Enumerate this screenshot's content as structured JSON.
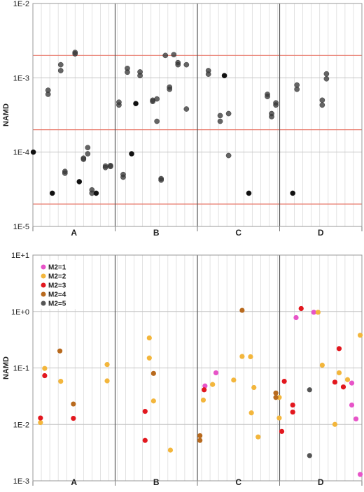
{
  "chart_data": [
    {
      "type": "scatter",
      "title": "",
      "ylabel": "NAMD",
      "yscale": "log",
      "ylim": [
        1e-05,
        0.01
      ],
      "ytick_labels": [
        "1E-5",
        "1E-4",
        "1E-3",
        "1E-2"
      ],
      "categories": [
        "A",
        "B",
        "C",
        "D"
      ],
      "xlim": [
        0,
        39
      ],
      "reference_lines": [
        2e-05,
        0.0002,
        0.002
      ],
      "reference_color": "#e8796b",
      "grid": true,
      "point_color": "#3a3a3a",
      "points": [
        {
          "x": 0.05,
          "y": 0.0001,
          "dark": true
        },
        {
          "x": 1.8,
          "y": 0.00068
        },
        {
          "x": 1.8,
          "y": 0.0006
        },
        {
          "x": 2.3,
          "y": 2.8e-05,
          "dark": true
        },
        {
          "x": 3.3,
          "y": 0.0015
        },
        {
          "x": 3.3,
          "y": 0.00125
        },
        {
          "x": 3.8,
          "y": 5.5e-05
        },
        {
          "x": 3.8,
          "y": 5.2e-05
        },
        {
          "x": 5.0,
          "y": 0.0022
        },
        {
          "x": 5.0,
          "y": 0.0021
        },
        {
          "x": 5.5,
          "y": 4e-05,
          "dark": true
        },
        {
          "x": 6.0,
          "y": 8.3e-05
        },
        {
          "x": 6.0,
          "y": 8e-05
        },
        {
          "x": 6.5,
          "y": 0.000115
        },
        {
          "x": 6.5,
          "y": 9.5e-05
        },
        {
          "x": 7.0,
          "y": 3.1e-05
        },
        {
          "x": 7.0,
          "y": 2.8e-05
        },
        {
          "x": 7.5,
          "y": 2.8e-05,
          "dark": true
        },
        {
          "x": 8.6,
          "y": 6.5e-05
        },
        {
          "x": 8.6,
          "y": 6.2e-05
        },
        {
          "x": 9.2,
          "y": 6.6e-05
        },
        {
          "x": 9.2,
          "y": 6.4e-05
        },
        {
          "x": 10.2,
          "y": 0.00047
        },
        {
          "x": 10.2,
          "y": 0.00043
        },
        {
          "x": 10.7,
          "y": 5e-05
        },
        {
          "x": 10.7,
          "y": 4.6e-05
        },
        {
          "x": 11.2,
          "y": 0.00134
        },
        {
          "x": 11.2,
          "y": 0.00119
        },
        {
          "x": 11.7,
          "y": 9.5e-05,
          "dark": true
        },
        {
          "x": 12.2,
          "y": 0.00045,
          "dark": true
        },
        {
          "x": 12.7,
          "y": 0.0012
        },
        {
          "x": 12.7,
          "y": 0.00107
        },
        {
          "x": 14.2,
          "y": 0.0005
        },
        {
          "x": 14.2,
          "y": 0.00048
        },
        {
          "x": 14.7,
          "y": 0.00052
        },
        {
          "x": 14.7,
          "y": 0.00026
        },
        {
          "x": 15.2,
          "y": 4.4e-05
        },
        {
          "x": 15.2,
          "y": 4.2e-05
        },
        {
          "x": 15.7,
          "y": 0.002
        },
        {
          "x": 16.2,
          "y": 0.00075
        },
        {
          "x": 16.2,
          "y": 0.0007
        },
        {
          "x": 16.7,
          "y": 0.00205
        },
        {
          "x": 17.2,
          "y": 0.0016
        },
        {
          "x": 17.2,
          "y": 0.0015
        },
        {
          "x": 18.2,
          "y": 0.0015
        },
        {
          "x": 18.2,
          "y": 0.00038
        },
        {
          "x": 20.8,
          "y": 0.00125
        },
        {
          "x": 20.8,
          "y": 0.00112
        },
        {
          "x": 22.2,
          "y": 0.00031
        },
        {
          "x": 22.2,
          "y": 0.00026
        },
        {
          "x": 22.7,
          "y": 0.00107,
          "dark": true
        },
        {
          "x": 23.2,
          "y": 0.00033
        },
        {
          "x": 23.2,
          "y": 9e-05
        },
        {
          "x": 25.6,
          "y": 2.8e-05,
          "dark": true
        },
        {
          "x": 27.8,
          "y": 0.0006
        },
        {
          "x": 27.8,
          "y": 0.00056
        },
        {
          "x": 28.3,
          "y": 0.00033
        },
        {
          "x": 28.3,
          "y": 0.0003
        },
        {
          "x": 28.8,
          "y": 0.00046
        },
        {
          "x": 28.8,
          "y": 0.00043
        },
        {
          "x": 30.8,
          "y": 2.8e-05,
          "dark": true
        },
        {
          "x": 31.3,
          "y": 0.0008
        },
        {
          "x": 31.3,
          "y": 0.0007
        },
        {
          "x": 34.3,
          "y": 0.0005
        },
        {
          "x": 34.3,
          "y": 0.00043
        },
        {
          "x": 34.8,
          "y": 0.00113
        },
        {
          "x": 34.8,
          "y": 0.00097
        }
      ]
    },
    {
      "type": "scatter",
      "title": "",
      "ylabel": "NAMD",
      "yscale": "log",
      "ylim": [
        0.001,
        10
      ],
      "ytick_labels": [
        "1E-3",
        "1E-2",
        "1E-1",
        "1E+0",
        "1E+1"
      ],
      "categories": [
        "A",
        "B",
        "C",
        "D"
      ],
      "xlim": [
        0,
        39
      ],
      "grid": true,
      "legend_position": "top-left",
      "series": [
        {
          "name": "M2=1",
          "color": "#e754c8",
          "points": [
            {
              "x": 20.4,
              "y": 0.048
            },
            {
              "x": 21.7,
              "y": 0.082
            },
            {
              "x": 31.2,
              "y": 0.78
            },
            {
              "x": 33.3,
              "y": 0.97
            },
            {
              "x": 37.8,
              "y": 0.054
            },
            {
              "x": 37.8,
              "y": 0.022
            },
            {
              "x": 38.3,
              "y": 0.0125
            },
            {
              "x": 38.8,
              "y": 0.0013
            }
          ]
        },
        {
          "name": "M2=2",
          "color": "#f3b63c",
          "points": [
            {
              "x": 0.9,
              "y": 0.0108
            },
            {
              "x": 1.4,
              "y": 0.098
            },
            {
              "x": 3.3,
              "y": 0.058
            },
            {
              "x": 8.8,
              "y": 0.115
            },
            {
              "x": 8.8,
              "y": 0.059
            },
            {
              "x": 13.8,
              "y": 0.34
            },
            {
              "x": 13.8,
              "y": 0.15
            },
            {
              "x": 14.3,
              "y": 0.026
            },
            {
              "x": 16.3,
              "y": 0.0035
            },
            {
              "x": 20.2,
              "y": 0.027
            },
            {
              "x": 21.3,
              "y": 0.051
            },
            {
              "x": 23.8,
              "y": 0.061
            },
            {
              "x": 24.8,
              "y": 0.16
            },
            {
              "x": 25.8,
              "y": 0.158
            },
            {
              "x": 25.9,
              "y": 0.016
            },
            {
              "x": 26.2,
              "y": 0.045
            },
            {
              "x": 26.7,
              "y": 0.006
            },
            {
              "x": 29.2,
              "y": 0.013
            },
            {
              "x": 29.2,
              "y": 0.03
            },
            {
              "x": 33.8,
              "y": 0.97
            },
            {
              "x": 34.3,
              "y": 0.112
            },
            {
              "x": 35.8,
              "y": 0.01
            },
            {
              "x": 36.3,
              "y": 0.082
            },
            {
              "x": 37.3,
              "y": 0.062
            },
            {
              "x": 38.8,
              "y": 0.38
            }
          ]
        },
        {
          "name": "M2=3",
          "color": "#e2171e",
          "points": [
            {
              "x": 0.9,
              "y": 0.013
            },
            {
              "x": 1.4,
              "y": 0.073
            },
            {
              "x": 4.8,
              "y": 0.0128
            },
            {
              "x": 13.3,
              "y": 0.017
            },
            {
              "x": 13.3,
              "y": 0.0052
            },
            {
              "x": 20.3,
              "y": 0.041
            },
            {
              "x": 29.5,
              "y": 0.0075
            },
            {
              "x": 29.8,
              "y": 0.058
            },
            {
              "x": 30.8,
              "y": 0.022
            },
            {
              "x": 30.8,
              "y": 0.0165
            },
            {
              "x": 31.8,
              "y": 1.13
            },
            {
              "x": 35.8,
              "y": 0.056
            },
            {
              "x": 36.3,
              "y": 0.22
            },
            {
              "x": 36.8,
              "y": 0.046
            }
          ]
        },
        {
          "name": "M2=4",
          "color": "#b86a1e",
          "points": [
            {
              "x": 3.2,
              "y": 0.2
            },
            {
              "x": 4.8,
              "y": 0.023
            },
            {
              "x": 14.3,
              "y": 0.08
            },
            {
              "x": 19.8,
              "y": 0.0063
            },
            {
              "x": 19.8,
              "y": 0.0052
            },
            {
              "x": 24.8,
              "y": 1.05
            },
            {
              "x": 28.8,
              "y": 0.036
            },
            {
              "x": 28.8,
              "y": 0.03
            }
          ]
        },
        {
          "name": "M2=5",
          "color": "#555555",
          "points": [
            {
              "x": 32.8,
              "y": 0.0028
            },
            {
              "x": 32.8,
              "y": 0.041
            }
          ]
        }
      ]
    }
  ]
}
